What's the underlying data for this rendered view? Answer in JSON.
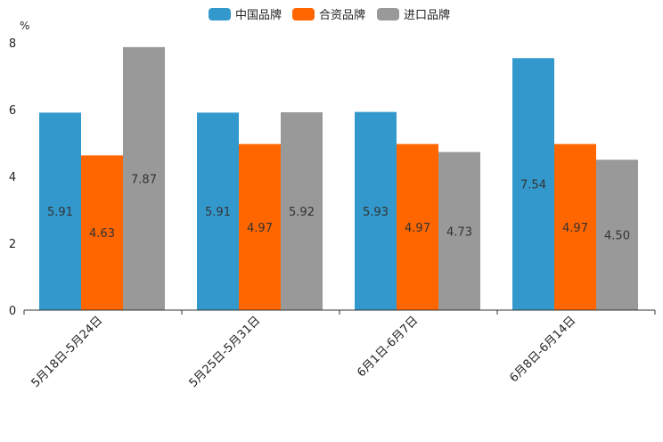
{
  "chart_data": {
    "type": "bar",
    "ylabel": "%",
    "ylim": [
      0,
      8
    ],
    "yticks": [
      "0",
      "2",
      "4",
      "6",
      "8"
    ],
    "grid": false,
    "legend_position": "top-center",
    "categories": [
      "5月18日-5月24日",
      "5月25日-5月31日",
      "6月1日-6月7日",
      "6月8日-6月14日"
    ],
    "series": [
      {
        "name": "中国品牌",
        "color": "#3399cc",
        "values": [
          5.91,
          5.91,
          5.93,
          7.54
        ],
        "labels": [
          "5.91",
          "5.91",
          "5.93",
          "7.54"
        ]
      },
      {
        "name": "合资品牌",
        "color": "#ff6600",
        "values": [
          4.63,
          4.97,
          4.97,
          4.97
        ],
        "labels": [
          "4.63",
          "4.97",
          "4.97",
          "4.97"
        ]
      },
      {
        "name": "进口品牌",
        "color": "#999999",
        "values": [
          7.87,
          5.92,
          4.73,
          4.5
        ],
        "labels": [
          "7.87",
          "5.92",
          "4.73",
          "4.50"
        ]
      }
    ]
  }
}
